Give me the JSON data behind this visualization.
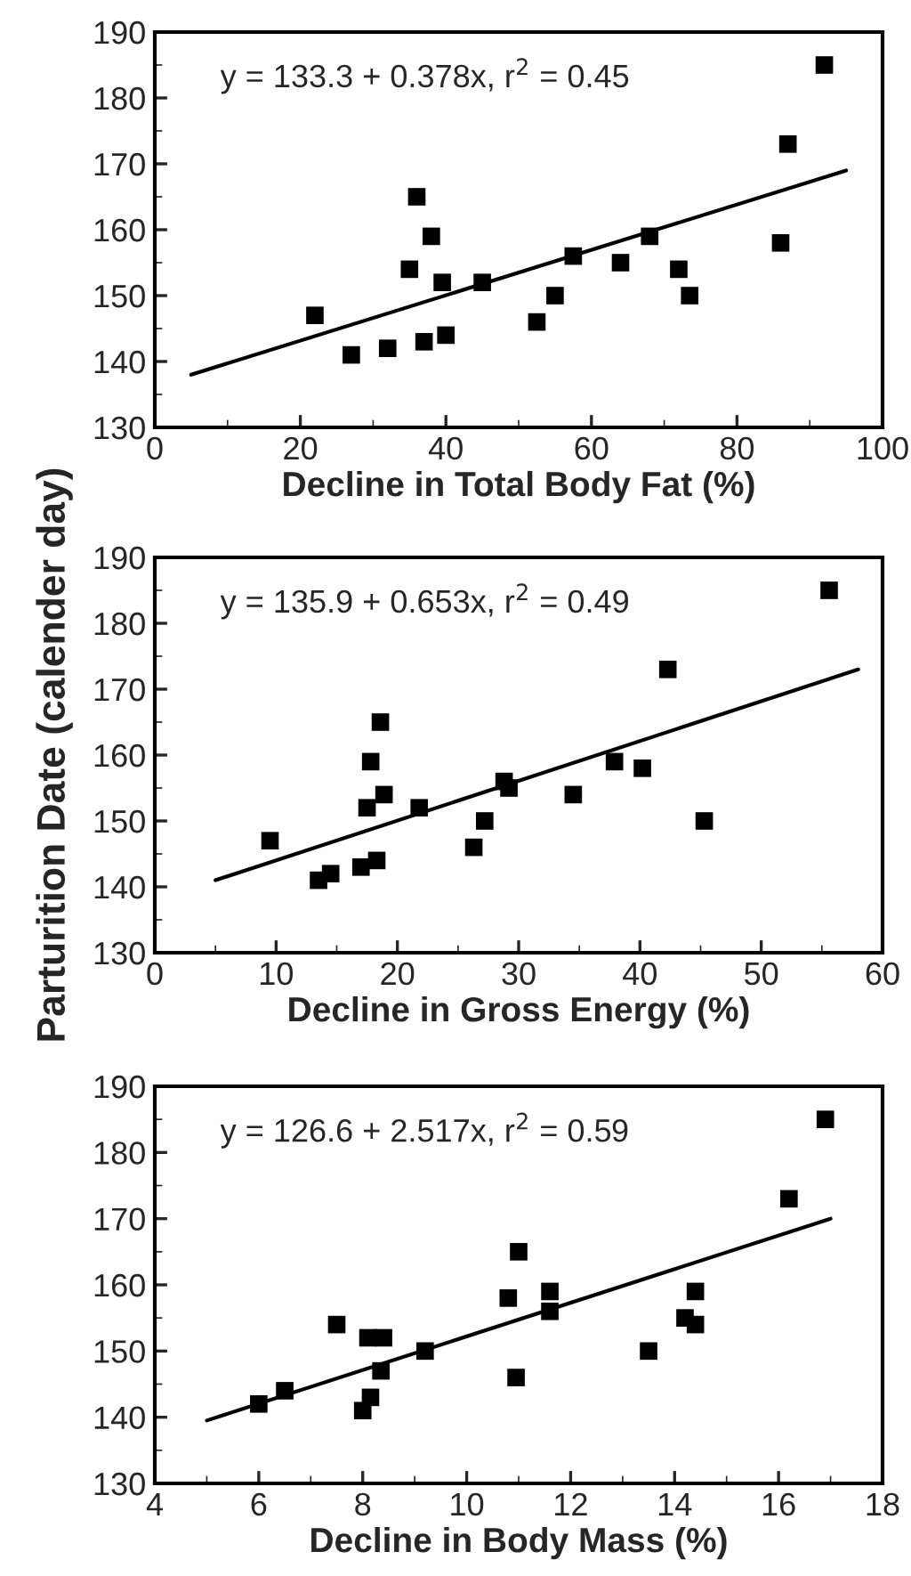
{
  "chart_data": [
    {
      "type": "scatter",
      "xlabel": "Decline in Total Body Fat (%)",
      "xlim": [
        0,
        100
      ],
      "xticks": [
        0,
        20,
        40,
        60,
        80,
        100
      ],
      "ylim": [
        130,
        190
      ],
      "yticks": [
        130,
        140,
        150,
        160,
        170,
        180,
        190
      ],
      "grid": false,
      "legend": false,
      "annotations": [
        "y = 133.3 + 0.378x, r$^{2}$ = 0.45"
      ],
      "series": [
        {
          "marker": "square",
          "color": "#000000",
          "x": [
            22,
            27,
            32,
            35,
            36,
            37,
            38,
            39.5,
            40,
            45,
            52.5,
            55,
            57.5,
            64,
            68,
            72,
            73.5,
            86,
            87,
            92
          ],
          "values": [
            147,
            141,
            142,
            154,
            165,
            143,
            159,
            152,
            144,
            152,
            146,
            150,
            156,
            155,
            159,
            154,
            150,
            158,
            173,
            185
          ]
        },
        {
          "type": "line",
          "color": "#000000",
          "x": [
            5,
            95
          ],
          "values": [
            138,
            169
          ]
        }
      ]
    },
    {
      "type": "scatter",
      "xlabel": "Decline in Gross Energy (%)",
      "ylabel": "Parturition Date (calender day)",
      "xlim": [
        0,
        60
      ],
      "xticks": [
        0,
        10,
        20,
        30,
        40,
        50,
        60
      ],
      "ylim": [
        130,
        190
      ],
      "yticks": [
        130,
        140,
        150,
        160,
        170,
        180,
        190
      ],
      "grid": false,
      "legend": false,
      "annotations": [
        "y = 135.9 + 0.653x, r$^{2}$ = 0.49"
      ],
      "series": [
        {
          "marker": "square",
          "color": "#000000",
          "x": [
            9.5,
            13.5,
            14.5,
            17,
            17.5,
            17.8,
            18.3,
            18.6,
            18.9,
            21.8,
            26.3,
            27.2,
            28.8,
            29.2,
            34.5,
            37.9,
            40.2,
            42.3,
            45.3,
            55.6
          ],
          "values": [
            147,
            141,
            142,
            143,
            152,
            159,
            144,
            165,
            154,
            152,
            146,
            150,
            156,
            155,
            154,
            159,
            158,
            173,
            150,
            185
          ]
        },
        {
          "type": "line",
          "color": "#000000",
          "x": [
            5,
            58
          ],
          "values": [
            141,
            173
          ]
        }
      ]
    },
    {
      "type": "scatter",
      "xlabel": "Decline in Body Mass (%)",
      "xlim": [
        4,
        18
      ],
      "xticks": [
        4,
        6,
        8,
        10,
        12,
        14,
        16,
        18
      ],
      "ylim": [
        130,
        190
      ],
      "yticks": [
        130,
        140,
        150,
        160,
        170,
        180,
        190
      ],
      "grid": false,
      "legend": false,
      "annotations": [
        "y = 126.6 + 2.517x, r$^{2}$ = 0.59"
      ],
      "series": [
        {
          "marker": "square",
          "color": "#000000",
          "x": [
            6,
            6.5,
            7.5,
            8,
            8.1,
            8.15,
            8.4,
            8.35,
            9.2,
            10.8,
            10.95,
            11,
            11.6,
            11.6,
            13.5,
            14.2,
            14.4,
            14.4,
            16.2,
            16.9
          ],
          "values": [
            142,
            144,
            154,
            141,
            152,
            143,
            152,
            147,
            150,
            158,
            146,
            165,
            159,
            156,
            150,
            155,
            159,
            154,
            173,
            185
          ]
        },
        {
          "type": "line",
          "color": "#000000",
          "x": [
            5,
            17
          ],
          "values": [
            139.5,
            170
          ]
        }
      ]
    }
  ]
}
